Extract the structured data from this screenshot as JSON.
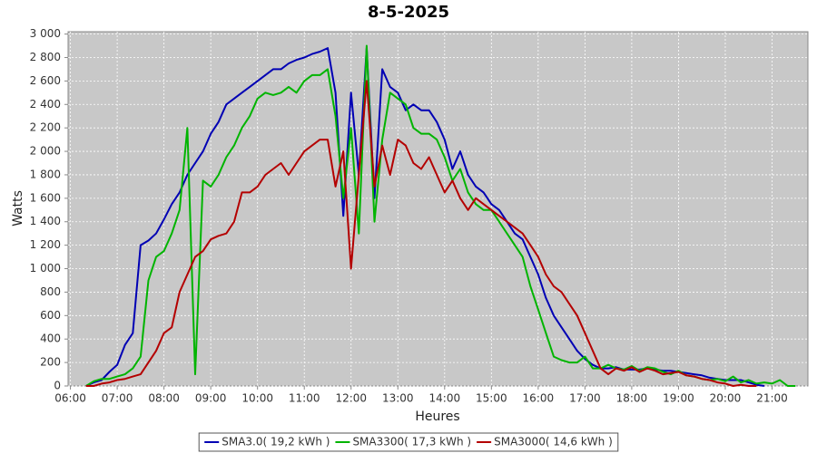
{
  "chart_data": {
    "type": "line",
    "title": "8-5-2025",
    "x_label": "Heures",
    "y_label": "Watts",
    "x": [
      380,
      390,
      400,
      410,
      420,
      430,
      440,
      450,
      460,
      470,
      480,
      490,
      500,
      510,
      520,
      530,
      540,
      550,
      560,
      570,
      580,
      590,
      600,
      610,
      620,
      630,
      640,
      650,
      660,
      670,
      680,
      690,
      700,
      710,
      720,
      730,
      740,
      750,
      760,
      770,
      780,
      790,
      800,
      810,
      820,
      830,
      840,
      850,
      860,
      870,
      880,
      890,
      900,
      910,
      920,
      930,
      940,
      950,
      960,
      970,
      980,
      990,
      1000,
      1010,
      1020,
      1030,
      1040,
      1050,
      1060,
      1070,
      1080,
      1090,
      1100,
      1110,
      1120,
      1130,
      1140,
      1150,
      1160,
      1170,
      1180,
      1190,
      1200,
      1210,
      1220,
      1230,
      1240,
      1250,
      1260,
      1270,
      1280,
      1290
    ],
    "series": [
      {
        "name": "SMA3.0( 19,2 kWh )",
        "color": "#0000b4",
        "values": [
          0,
          30,
          50,
          120,
          180,
          350,
          450,
          1200,
          1240,
          1300,
          1420,
          1550,
          1650,
          1800,
          1900,
          2000,
          2150,
          2250,
          2400,
          2450,
          2500,
          2550,
          2600,
          2650,
          2700,
          2700,
          2750,
          2780,
          2800,
          2830,
          2850,
          2880,
          2500,
          1450,
          2500,
          1800,
          2880,
          1600,
          2700,
          2550,
          2500,
          2350,
          2400,
          2350,
          2350,
          2250,
          2100,
          1850,
          2000,
          1800,
          1700,
          1650,
          1550,
          1500,
          1400,
          1300,
          1250,
          1100,
          950,
          750,
          600,
          500,
          400,
          300,
          230,
          180,
          150,
          150,
          160,
          140,
          140,
          140,
          150,
          140,
          130,
          130,
          120,
          110,
          100,
          90,
          70,
          60,
          50,
          50,
          50,
          30,
          10,
          0,
          null,
          null,
          null,
          null
        ]
      },
      {
        "name": "SMA3300( 17,3 kWh )",
        "color": "#00b400",
        "values": [
          0,
          40,
          60,
          60,
          80,
          100,
          150,
          250,
          900,
          1100,
          1150,
          1300,
          1500,
          2200,
          100,
          1750,
          1700,
          1800,
          1950,
          2050,
          2200,
          2300,
          2450,
          2500,
          2480,
          2500,
          2550,
          2500,
          2600,
          2650,
          2650,
          2700,
          2300,
          1600,
          2200,
          1300,
          2900,
          1400,
          2100,
          2500,
          2450,
          2400,
          2200,
          2150,
          2150,
          2100,
          1950,
          1750,
          1850,
          1650,
          1550,
          1500,
          1500,
          1400,
          1300,
          1200,
          1100,
          850,
          650,
          450,
          250,
          220,
          200,
          200,
          250,
          150,
          150,
          180,
          150,
          140,
          170,
          130,
          160,
          150,
          120,
          100,
          130,
          90,
          80,
          60,
          50,
          60,
          40,
          80,
          30,
          50,
          20,
          30,
          20,
          50,
          0,
          0
        ]
      },
      {
        "name": "SMA3000( 14,6 kWh )",
        "color": "#b40000",
        "values": [
          0,
          0,
          20,
          30,
          50,
          60,
          80,
          100,
          200,
          300,
          450,
          500,
          800,
          950,
          1100,
          1150,
          1250,
          1280,
          1300,
          1400,
          1650,
          1650,
          1700,
          1800,
          1850,
          1900,
          1800,
          1900,
          2000,
          2050,
          2100,
          2100,
          1700,
          2000,
          1000,
          1800,
          2600,
          1700,
          2050,
          1800,
          2100,
          2050,
          1900,
          1850,
          1950,
          1800,
          1650,
          1750,
          1600,
          1500,
          1600,
          1550,
          1500,
          1450,
          1400,
          1350,
          1300,
          1200,
          1100,
          950,
          850,
          800,
          700,
          600,
          450,
          300,
          150,
          100,
          150,
          130,
          160,
          120,
          150,
          130,
          100,
          110,
          120,
          90,
          80,
          60,
          50,
          30,
          20,
          0,
          10,
          0,
          0,
          null,
          null,
          null,
          null,
          null
        ]
      }
    ],
    "xlim": [
      357,
      1306
    ],
    "xticks": [
      {
        "value": 360,
        "label": "06:00"
      },
      {
        "value": 420,
        "label": "07:00"
      },
      {
        "value": 480,
        "label": "08:00"
      },
      {
        "value": 540,
        "label": "09:00"
      },
      {
        "value": 600,
        "label": "10:00"
      },
      {
        "value": 660,
        "label": "11:00"
      },
      {
        "value": 720,
        "label": "12:00"
      },
      {
        "value": 780,
        "label": "13:00"
      },
      {
        "value": 840,
        "label": "14:00"
      },
      {
        "value": 900,
        "label": "15:00"
      },
      {
        "value": 960,
        "label": "16:00"
      },
      {
        "value": 1020,
        "label": "17:00"
      },
      {
        "value": 1080,
        "label": "18:00"
      },
      {
        "value": 1140,
        "label": "19:00"
      },
      {
        "value": 1200,
        "label": "20:00"
      },
      {
        "value": 1260,
        "label": "21:00"
      }
    ],
    "ylim": [
      0,
      3020
    ],
    "yticks": [
      0,
      200,
      400,
      600,
      800,
      {
        "value": 1000,
        "label": "1 000"
      },
      {
        "value": 1200,
        "label": "1 200"
      },
      {
        "value": 1400,
        "label": "1 400"
      },
      {
        "value": 1600,
        "label": "1 600"
      },
      {
        "value": 1800,
        "label": "1 800"
      },
      {
        "value": 2000,
        "label": "2 000"
      },
      {
        "value": 2200,
        "label": "2 200"
      },
      {
        "value": 2400,
        "label": "2 400"
      },
      {
        "value": 2600,
        "label": "2 600"
      },
      {
        "value": 2800,
        "label": "2 800"
      },
      {
        "value": 3000,
        "label": "3 000"
      }
    ],
    "grid": true,
    "legend": "bottom"
  }
}
